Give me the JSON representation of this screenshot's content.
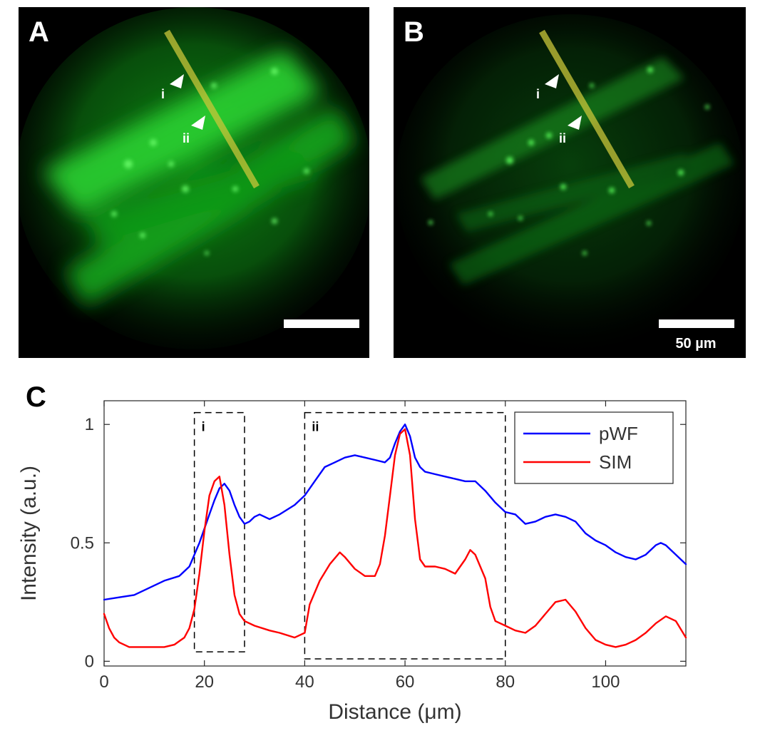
{
  "panels": {
    "a": {
      "letter": "A",
      "arrow_i": "i",
      "arrow_ii": "ii"
    },
    "b": {
      "letter": "B",
      "arrow_i": "i",
      "arrow_ii": "ii",
      "scalebar_label": "50 µm"
    },
    "c": {
      "letter": "C"
    }
  },
  "colors": {
    "pWF": "#0000ff",
    "SIM": "#ff0000",
    "line_profile": "#c9c63a",
    "fluorescence": "#22c02a"
  },
  "chart_data": {
    "type": "line",
    "title": "",
    "xlabel": "Distance (μm)",
    "ylabel": "Intensity (a.u.)",
    "xlim": [
      0,
      116
    ],
    "ylim": [
      -0.02,
      1.1
    ],
    "xticks": [
      0,
      20,
      40,
      60,
      80,
      100
    ],
    "xtick_labels": [
      "0",
      "20",
      "40",
      "60",
      "80",
      "100"
    ],
    "yticks": [
      0,
      0.5,
      1
    ],
    "ytick_labels": [
      "0",
      "0.5",
      "1"
    ],
    "grid": false,
    "legend": "top-right",
    "series": [
      {
        "name": "pWF",
        "x": [
          0,
          3,
          6,
          9,
          12,
          15,
          17,
          19,
          21,
          22,
          23,
          24,
          25,
          26,
          27,
          28,
          29,
          30,
          31,
          33,
          35,
          38,
          40,
          42,
          44,
          46,
          48,
          50,
          52,
          54,
          56,
          57,
          58,
          59,
          60,
          61,
          62,
          63,
          64,
          66,
          68,
          70,
          72,
          74,
          76,
          78,
          80,
          82,
          84,
          86,
          88,
          90,
          92,
          94,
          96,
          98,
          100,
          102,
          104,
          106,
          108,
          110,
          111,
          112,
          114,
          116
        ],
        "y": [
          0.26,
          0.27,
          0.28,
          0.31,
          0.34,
          0.36,
          0.4,
          0.5,
          0.62,
          0.68,
          0.73,
          0.75,
          0.72,
          0.66,
          0.61,
          0.58,
          0.59,
          0.61,
          0.62,
          0.6,
          0.62,
          0.66,
          0.7,
          0.76,
          0.82,
          0.84,
          0.86,
          0.87,
          0.86,
          0.85,
          0.84,
          0.86,
          0.92,
          0.97,
          1.0,
          0.95,
          0.86,
          0.82,
          0.8,
          0.79,
          0.78,
          0.77,
          0.76,
          0.76,
          0.72,
          0.67,
          0.63,
          0.62,
          0.58,
          0.59,
          0.61,
          0.62,
          0.61,
          0.59,
          0.54,
          0.51,
          0.49,
          0.46,
          0.44,
          0.43,
          0.45,
          0.49,
          0.5,
          0.49,
          0.45,
          0.41
        ]
      },
      {
        "name": "SIM",
        "x": [
          0,
          1,
          2,
          3,
          5,
          8,
          10,
          12,
          14,
          16,
          17,
          18,
          19,
          20,
          21,
          22,
          23,
          24,
          25,
          26,
          27,
          28,
          30,
          33,
          35,
          38,
          40,
          41,
          43,
          45,
          47,
          48,
          50,
          52,
          54,
          55,
          56,
          57,
          58,
          59,
          60,
          61,
          62,
          63,
          64,
          66,
          68,
          70,
          72,
          73,
          74,
          76,
          77,
          78,
          80,
          82,
          84,
          86,
          88,
          90,
          92,
          94,
          96,
          98,
          100,
          102,
          104,
          106,
          108,
          110,
          112,
          114,
          116
        ],
        "y": [
          0.2,
          0.14,
          0.1,
          0.08,
          0.06,
          0.06,
          0.06,
          0.06,
          0.07,
          0.1,
          0.14,
          0.22,
          0.37,
          0.55,
          0.7,
          0.76,
          0.78,
          0.66,
          0.45,
          0.28,
          0.2,
          0.17,
          0.15,
          0.13,
          0.12,
          0.1,
          0.12,
          0.24,
          0.34,
          0.41,
          0.46,
          0.44,
          0.39,
          0.36,
          0.36,
          0.41,
          0.53,
          0.7,
          0.87,
          0.96,
          0.98,
          0.87,
          0.6,
          0.43,
          0.4,
          0.4,
          0.39,
          0.37,
          0.43,
          0.47,
          0.45,
          0.35,
          0.23,
          0.17,
          0.15,
          0.13,
          0.12,
          0.15,
          0.2,
          0.25,
          0.26,
          0.21,
          0.14,
          0.09,
          0.07,
          0.06,
          0.07,
          0.09,
          0.12,
          0.16,
          0.19,
          0.17,
          0.1
        ]
      }
    ],
    "annotations": [
      {
        "label": "i",
        "x_range": [
          18,
          28
        ],
        "y_range": [
          0.04,
          1.05
        ]
      },
      {
        "label": "ii",
        "x_range": [
          40,
          80
        ],
        "y_range": [
          0.01,
          1.05
        ]
      }
    ]
  }
}
